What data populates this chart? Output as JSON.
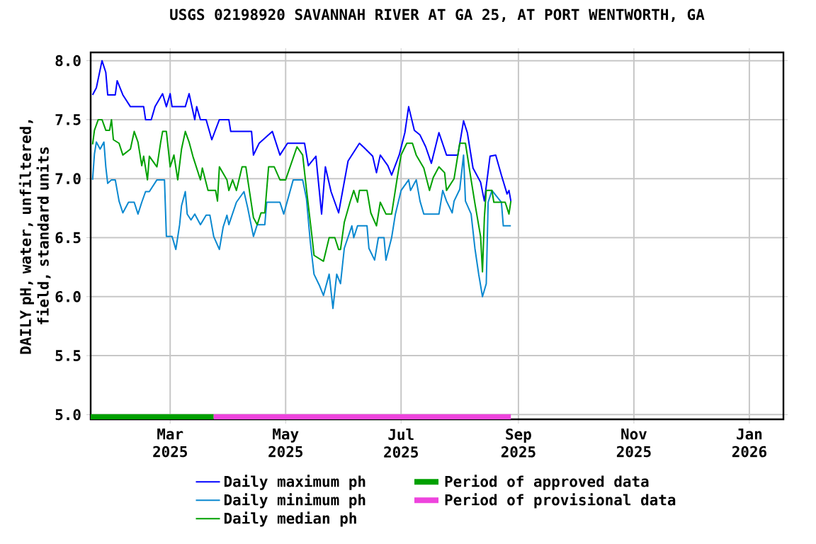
{
  "chart_data": {
    "type": "line",
    "title": "USGS 02198920 SAVANNAH RIVER AT GA 25, AT PORT WENTWORTH, GA",
    "ylabel": "DAILY pH, water, unfiltered, field, standard units",
    "xlim": [
      "2025-01-18",
      "2026-01-19"
    ],
    "xticks": [
      {
        "value": "2025-03-01",
        "label": "Mar 2025"
      },
      {
        "value": "2025-05-01",
        "label": "May 2025"
      },
      {
        "value": "2025-07-01",
        "label": "Jul 2025"
      },
      {
        "value": "2025-09-01",
        "label": "Sep 2025"
      },
      {
        "value": "2025-11-01",
        "label": "Nov 2025"
      },
      {
        "value": "2026-01-01",
        "label": "Jan 2026"
      }
    ],
    "ylim": [
      4.96,
      8.07
    ],
    "yticks": [
      {
        "value": 5,
        "label": "5.0"
      },
      {
        "value": 5.5,
        "label": "5.5"
      },
      {
        "value": 6,
        "label": "6.0"
      },
      {
        "value": 6.5,
        "label": "6.5"
      },
      {
        "value": 7,
        "label": "7.0"
      },
      {
        "value": 7.5,
        "label": "7.5"
      },
      {
        "value": 8,
        "label": "8.0"
      }
    ],
    "grid": true,
    "legend": "bottom",
    "marker": "none",
    "line_style": "solid",
    "series": [
      {
        "name": "Daily maximum ph",
        "color": "#0000ff",
        "x": [
          "2025-01-19",
          "2025-01-21",
          "2025-01-24",
          "2025-01-26",
          "2025-01-27",
          "2025-01-31",
          "2025-02-01",
          "2025-02-04",
          "2025-02-08",
          "2025-02-15",
          "2025-02-16",
          "2025-02-19",
          "2025-02-21",
          "2025-02-25",
          "2025-02-27",
          "2025-03-01",
          "2025-03-02",
          "2025-03-09",
          "2025-03-11",
          "2025-03-14",
          "2025-03-15",
          "2025-03-17",
          "2025-03-20",
          "2025-03-23",
          "2025-03-27",
          "2025-04-01",
          "2025-04-02",
          "2025-04-13",
          "2025-04-14",
          "2025-04-17",
          "2025-04-24",
          "2025-04-28",
          "2025-05-02",
          "2025-05-11",
          "2025-05-13",
          "2025-05-17",
          "2025-05-20",
          "2025-05-22",
          "2025-05-25",
          "2025-05-29",
          "2025-06-03",
          "2025-06-09",
          "2025-06-11",
          "2025-06-16",
          "2025-06-18",
          "2025-06-20",
          "2025-06-24",
          "2025-06-26",
          "2025-06-30",
          "2025-07-03",
          "2025-07-05",
          "2025-07-08",
          "2025-07-11",
          "2025-07-14",
          "2025-07-17",
          "2025-07-21",
          "2025-07-25",
          "2025-07-31",
          "2025-08-03",
          "2025-08-05",
          "2025-08-08",
          "2025-08-12",
          "2025-08-14",
          "2025-08-17",
          "2025-08-20",
          "2025-08-23",
          "2025-08-26",
          "2025-08-27",
          "2025-08-28"
        ],
        "values": [
          7.71,
          7.77,
          8.0,
          7.9,
          7.71,
          7.71,
          7.83,
          7.71,
          7.61,
          7.61,
          7.5,
          7.5,
          7.61,
          7.72,
          7.61,
          7.72,
          7.61,
          7.61,
          7.72,
          7.5,
          7.61,
          7.5,
          7.5,
          7.33,
          7.5,
          7.5,
          7.4,
          7.4,
          7.2,
          7.3,
          7.4,
          7.2,
          7.3,
          7.3,
          7.11,
          7.19,
          6.7,
          7.1,
          6.89,
          6.71,
          7.15,
          7.3,
          7.27,
          7.19,
          7.05,
          7.2,
          7.11,
          7.03,
          7.2,
          7.39,
          7.61,
          7.41,
          7.37,
          7.27,
          7.13,
          7.39,
          7.2,
          7.2,
          7.49,
          7.39,
          7.09,
          6.97,
          6.81,
          7.19,
          7.2,
          7.03,
          6.87,
          6.9,
          6.81
        ]
      },
      {
        "name": "Daily minimum ph",
        "color": "#0a88d0",
        "x": [
          "2025-01-19",
          "2025-01-20",
          "2025-01-21",
          "2025-01-23",
          "2025-01-25",
          "2025-01-26",
          "2025-01-27",
          "2025-01-29",
          "2025-01-31",
          "2025-02-02",
          "2025-02-04",
          "2025-02-07",
          "2025-02-10",
          "2025-02-12",
          "2025-02-14",
          "2025-02-16",
          "2025-02-18",
          "2025-02-22",
          "2025-02-26",
          "2025-02-27",
          "2025-03-02",
          "2025-03-04",
          "2025-03-06",
          "2025-03-07",
          "2025-03-09",
          "2025-03-10",
          "2025-03-12",
          "2025-03-14",
          "2025-03-17",
          "2025-03-20",
          "2025-03-22",
          "2025-03-24",
          "2025-03-27",
          "2025-03-29",
          "2025-03-31",
          "2025-04-01",
          "2025-04-05",
          "2025-04-09",
          "2025-04-11",
          "2025-04-14",
          "2025-04-16",
          "2025-04-20",
          "2025-04-21",
          "2025-04-28",
          "2025-04-30",
          "2025-05-05",
          "2025-05-10",
          "2025-05-12",
          "2025-05-14",
          "2025-05-16",
          "2025-05-19",
          "2025-05-21",
          "2025-05-24",
          "2025-05-26",
          "2025-05-28",
          "2025-05-30",
          "2025-06-01",
          "2025-06-05",
          "2025-06-06",
          "2025-06-08",
          "2025-06-13",
          "2025-06-14",
          "2025-06-17",
          "2025-06-19",
          "2025-06-22",
          "2025-06-23",
          "2025-06-26",
          "2025-06-28",
          "2025-07-01",
          "2025-07-05",
          "2025-07-06",
          "2025-07-09",
          "2025-07-11",
          "2025-07-13",
          "2025-07-21",
          "2025-07-23",
          "2025-07-25",
          "2025-07-28",
          "2025-07-29",
          "2025-08-01",
          "2025-08-03",
          "2025-08-04",
          "2025-08-07",
          "2025-08-09",
          "2025-08-11",
          "2025-08-13",
          "2025-08-15",
          "2025-08-16",
          "2025-08-18",
          "2025-08-23",
          "2025-08-24",
          "2025-08-28"
        ],
        "values": [
          6.99,
          7.21,
          7.31,
          7.25,
          7.31,
          7.1,
          6.96,
          6.99,
          6.99,
          6.81,
          6.71,
          6.8,
          6.8,
          6.7,
          6.8,
          6.89,
          6.89,
          6.99,
          6.99,
          6.51,
          6.51,
          6.4,
          6.61,
          6.77,
          6.89,
          6.7,
          6.65,
          6.7,
          6.61,
          6.69,
          6.69,
          6.51,
          6.4,
          6.59,
          6.69,
          6.61,
          6.8,
          6.89,
          6.75,
          6.51,
          6.61,
          6.61,
          6.8,
          6.8,
          6.7,
          6.99,
          6.99,
          6.83,
          6.47,
          6.19,
          6.09,
          6.01,
          6.19,
          5.9,
          6.19,
          6.11,
          6.41,
          6.6,
          6.5,
          6.6,
          6.6,
          6.41,
          6.31,
          6.5,
          6.5,
          6.31,
          6.5,
          6.7,
          6.9,
          6.99,
          6.9,
          6.99,
          6.81,
          6.7,
          6.7,
          6.9,
          6.81,
          6.71,
          6.81,
          6.91,
          7.2,
          6.81,
          6.7,
          6.41,
          6.19,
          6.0,
          6.11,
          6.8,
          6.9,
          6.8,
          6.6,
          6.6
        ]
      },
      {
        "name": "Daily median ph",
        "color": "#00a000",
        "x": [
          "2025-01-19",
          "2025-01-20",
          "2025-01-22",
          "2025-01-24",
          "2025-01-26",
          "2025-01-28",
          "2025-01-29",
          "2025-01-30",
          "2025-02-02",
          "2025-02-04",
          "2025-02-08",
          "2025-02-10",
          "2025-02-12",
          "2025-02-14",
          "2025-02-15",
          "2025-02-17",
          "2025-02-18",
          "2025-02-22",
          "2025-02-24",
          "2025-02-25",
          "2025-02-27",
          "2025-03-01",
          "2025-03-03",
          "2025-03-05",
          "2025-03-07",
          "2025-03-09",
          "2025-03-11",
          "2025-03-13",
          "2025-03-17",
          "2025-03-18",
          "2025-03-21",
          "2025-03-25",
          "2025-03-26",
          "2025-03-27",
          "2025-03-31",
          "2025-04-01",
          "2025-04-03",
          "2025-04-05",
          "2025-04-08",
          "2025-04-10",
          "2025-04-11",
          "2025-04-14",
          "2025-04-16",
          "2025-04-18",
          "2025-04-20",
          "2025-04-22",
          "2025-04-25",
          "2025-04-28",
          "2025-05-01",
          "2025-05-07",
          "2025-05-10",
          "2025-05-12",
          "2025-05-15",
          "2025-05-16",
          "2025-05-21",
          "2025-05-24",
          "2025-05-27",
          "2025-05-29",
          "2025-05-30",
          "2025-06-01",
          "2025-06-04",
          "2025-06-06",
          "2025-06-08",
          "2025-06-09",
          "2025-06-13",
          "2025-06-15",
          "2025-06-18",
          "2025-06-20",
          "2025-06-23",
          "2025-06-26",
          "2025-06-29",
          "2025-07-01",
          "2025-07-04",
          "2025-07-07",
          "2025-07-09",
          "2025-07-13",
          "2025-07-16",
          "2025-07-18",
          "2025-07-21",
          "2025-07-24",
          "2025-07-25",
          "2025-07-29",
          "2025-08-01",
          "2025-08-04",
          "2025-08-07",
          "2025-08-09",
          "2025-08-12",
          "2025-08-13",
          "2025-08-14",
          "2025-08-15",
          "2025-08-18",
          "2025-08-19",
          "2025-08-25",
          "2025-08-27",
          "2025-08-28"
        ],
        "values": [
          7.29,
          7.41,
          7.5,
          7.5,
          7.41,
          7.41,
          7.5,
          7.33,
          7.3,
          7.2,
          7.25,
          7.4,
          7.31,
          7.11,
          7.19,
          6.99,
          7.19,
          7.1,
          7.31,
          7.4,
          7.4,
          7.1,
          7.2,
          6.99,
          7.25,
          7.4,
          7.31,
          7.19,
          6.99,
          7.09,
          6.9,
          6.9,
          6.81,
          7.1,
          6.99,
          6.9,
          6.99,
          6.9,
          7.1,
          7.1,
          6.99,
          6.67,
          6.61,
          6.71,
          6.71,
          7.1,
          7.1,
          6.99,
          6.99,
          7.27,
          7.2,
          6.91,
          6.5,
          6.35,
          6.3,
          6.5,
          6.5,
          6.4,
          6.4,
          6.63,
          6.8,
          6.9,
          6.8,
          6.9,
          6.9,
          6.71,
          6.6,
          6.8,
          6.7,
          6.7,
          7.01,
          7.2,
          7.3,
          7.3,
          7.2,
          7.09,
          6.9,
          7.01,
          7.1,
          7.05,
          6.9,
          7.0,
          7.3,
          7.3,
          6.99,
          6.79,
          6.51,
          6.21,
          6.67,
          6.9,
          6.9,
          6.8,
          6.8,
          6.7,
          6.81
        ]
      },
      {
        "name": "Period of approved data",
        "type": "line",
        "color": "#00a000",
        "x": [
          "2025-01-18",
          "2025-03-24"
        ],
        "values": [
          4.98,
          4.98
        ]
      },
      {
        "name": "Period of provisional data",
        "type": "line",
        "color": "#ee44dd",
        "x": [
          "2025-03-24",
          "2025-08-28"
        ],
        "values": [
          4.98,
          4.98
        ]
      }
    ]
  }
}
